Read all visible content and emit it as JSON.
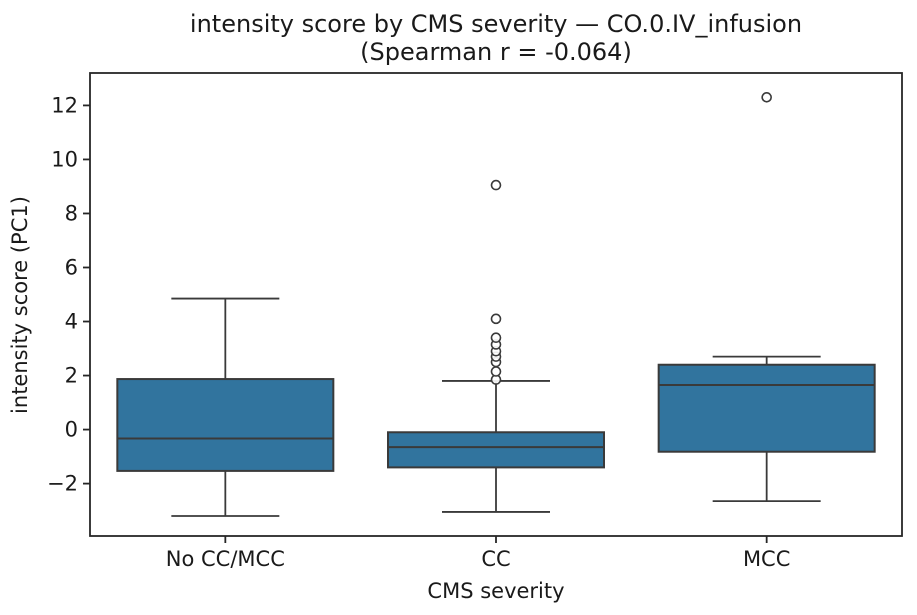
{
  "figure": {
    "background": "#ffffff"
  },
  "chart_data": {
    "type": "box",
    "title": "intensity score by CMS severity — CO.0.IV_infusion",
    "subtitle": "(Spearman r = -0.064)",
    "xlabel": "CMS severity",
    "ylabel": "intensity score (PC1)",
    "categories": [
      "No CC/MCC",
      "CC",
      "MCC"
    ],
    "ylim": [
      -3.94,
      13.2
    ],
    "grid": false,
    "legend": false,
    "y_ticks": [
      {
        "value": -2,
        "label": "−2"
      },
      {
        "value": 0,
        "label": "0"
      },
      {
        "value": 2,
        "label": "2"
      },
      {
        "value": 4,
        "label": "4"
      },
      {
        "value": 6,
        "label": "6"
      },
      {
        "value": 8,
        "label": "8"
      },
      {
        "value": 10,
        "label": "10"
      },
      {
        "value": 12,
        "label": "12"
      }
    ],
    "boxes": [
      {
        "category": "No CC/MCC",
        "whisker_low": -3.2,
        "q1": -1.53,
        "median": -0.33,
        "q3": 1.87,
        "whisker_high": 4.85,
        "outliers": []
      },
      {
        "category": "CC",
        "whisker_low": -3.05,
        "q1": -1.4,
        "median": -0.65,
        "q3": -0.1,
        "whisker_high": 1.8,
        "outliers": [
          1.85,
          2.15,
          2.5,
          2.7,
          2.9,
          3.15,
          3.4,
          4.1,
          9.05
        ]
      },
      {
        "category": "MCC",
        "whisker_low": -2.65,
        "q1": -0.82,
        "median": 1.65,
        "q3": 2.4,
        "whisker_high": 2.7,
        "outliers": [
          12.3
        ]
      }
    ],
    "colors": {
      "box_fill": "#31749e",
      "box_line": "#3a3a3a",
      "spine": "#262626",
      "text": "#1a1a1a",
      "flier_fill": "#ffffff"
    }
  }
}
